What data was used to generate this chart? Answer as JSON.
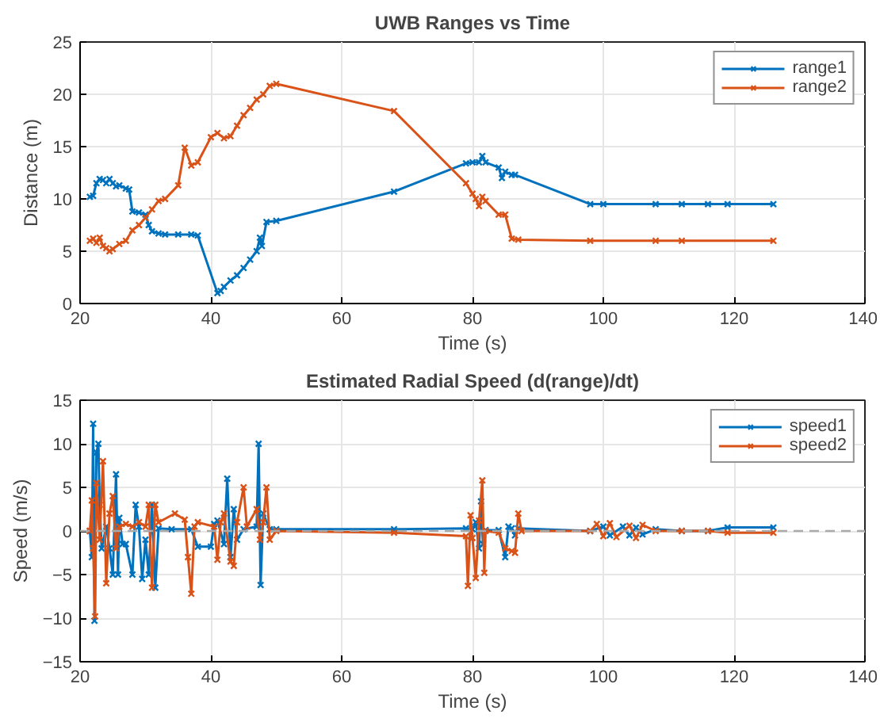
{
  "chart_data": [
    {
      "type": "line",
      "title": "UWB Ranges vs Time",
      "xlabel": "Time (s)",
      "ylabel": "Distance (m)",
      "xlim": [
        20,
        140
      ],
      "ylim": [
        0,
        25
      ],
      "xticks": [
        20,
        40,
        60,
        80,
        100,
        120,
        140
      ],
      "yticks": [
        0,
        5,
        10,
        15,
        20,
        25
      ],
      "grid": true,
      "legend": "top right",
      "marker": "cross",
      "line_style": "solid",
      "series": [
        {
          "name": "range1",
          "color": "#0072bd",
          "x": [
            21.5,
            22,
            22.5,
            23,
            23.5,
            24,
            24.5,
            25,
            25.5,
            26,
            27,
            27.5,
            28,
            29,
            30,
            30.5,
            31,
            32,
            33,
            35,
            37,
            38,
            41,
            41.5,
            42,
            43,
            44,
            45,
            46,
            47,
            47.5,
            47.8,
            48.5,
            50,
            68,
            79,
            80,
            81,
            81.5,
            82,
            84,
            84.5,
            85,
            86,
            86.5,
            98,
            100,
            108,
            112,
            116,
            119,
            126
          ],
          "values": [
            10.2,
            10.3,
            11.5,
            11.9,
            11.8,
            11.5,
            11.9,
            11.5,
            11.2,
            11.3,
            11.0,
            10.9,
            8.8,
            8.7,
            8.5,
            7.5,
            6.9,
            6.7,
            6.6,
            6.6,
            6.6,
            6.5,
            1.0,
            1.2,
            1.6,
            2.2,
            2.7,
            3.4,
            4.2,
            5.0,
            6.3,
            5.5,
            7.8,
            7.9,
            10.7,
            13.4,
            13.5,
            13.5,
            14.1,
            13.5,
            13.0,
            12.0,
            12.6,
            12.3,
            12.3,
            9.5,
            9.5,
            9.5,
            9.5,
            9.5,
            9.5,
            9.5
          ]
        },
        {
          "name": "range2",
          "color": "#d95319",
          "x": [
            21.5,
            22,
            22.5,
            23,
            23.5,
            24,
            24.5,
            25,
            26,
            27,
            28,
            29,
            30,
            31,
            32,
            33,
            35,
            36,
            37,
            38,
            40,
            41,
            42,
            43,
            44,
            45,
            46,
            47,
            48,
            49,
            50,
            68,
            79,
            80,
            80.5,
            81,
            81.5,
            82,
            84,
            85,
            86,
            87,
            98,
            108,
            112,
            126
          ],
          "values": [
            6.0,
            6.2,
            5.8,
            6.3,
            5.5,
            5.3,
            5.0,
            5.2,
            5.7,
            6.0,
            7.0,
            7.5,
            8.2,
            9.0,
            9.8,
            10.0,
            11.3,
            14.9,
            13.2,
            13.5,
            15.9,
            16.3,
            15.8,
            16.0,
            17.0,
            18.0,
            18.7,
            19.5,
            20.0,
            20.8,
            21.0,
            18.4,
            11.5,
            10.5,
            10.0,
            9.3,
            10.2,
            9.8,
            8.5,
            8.5,
            6.2,
            6.1,
            6.0,
            6.0,
            6.0,
            6.0
          ]
        }
      ]
    },
    {
      "type": "line",
      "title": "Estimated Radial Speed (d(range)/dt)",
      "xlabel": "Time (s)",
      "ylabel": "Speed (m/s)",
      "xlim": [
        20,
        140
      ],
      "ylim": [
        -15,
        15
      ],
      "xticks": [
        20,
        40,
        60,
        80,
        100,
        120,
        140
      ],
      "yticks": [
        -15,
        -10,
        -5,
        0,
        5,
        10,
        15
      ],
      "grid": true,
      "legend": "top right",
      "marker": "cross",
      "line_style": "solid",
      "ref_lines": [
        {
          "axis": "y",
          "value": 0,
          "label": null,
          "color": "#aaaaaa",
          "line_style": "dashed"
        }
      ],
      "series": [
        {
          "name": "speed1",
          "color": "#0072bd",
          "x": [
            21.5,
            21.8,
            22,
            22.2,
            22.5,
            22.8,
            23,
            23.3,
            24,
            24.5,
            25,
            25.5,
            25.8,
            26,
            26.5,
            27,
            28,
            28.5,
            29,
            29.5,
            30,
            30.5,
            31,
            31.5,
            32,
            34,
            37,
            38,
            40,
            40.5,
            41,
            42,
            42.5,
            43,
            43.5,
            44,
            45,
            47,
            47.3,
            47.6,
            48,
            49,
            50,
            68,
            79,
            80,
            80.5,
            81,
            81.3,
            81.6,
            82,
            84,
            85,
            85.5,
            86,
            86.5,
            87,
            98,
            100,
            101,
            103,
            104,
            105,
            106,
            108,
            112,
            116,
            119,
            126
          ],
          "values": [
            0,
            -3,
            12.3,
            -10.3,
            9.0,
            10.0,
            3,
            -2,
            0.5,
            -2,
            -5,
            6.5,
            -5,
            1.5,
            -1.5,
            -1.5,
            -5,
            3.0,
            0.5,
            -5.5,
            -1,
            -5,
            3.0,
            -6.5,
            0.3,
            0.2,
            0.2,
            -1.8,
            -1.8,
            0.8,
            1.2,
            -1.5,
            6.0,
            -3,
            2.5,
            -1.0,
            0.2,
            0.5,
            10,
            -6.2,
            2,
            0.2,
            0.2,
            0.2,
            0.3,
            0.2,
            1.0,
            -2.0,
            3.4,
            -1.5,
            0.1,
            0.1,
            -3.0,
            0.5,
            0.3,
            -0.5,
            0.3,
            0,
            0.5,
            -0.5,
            0.5,
            -0.5,
            0.4,
            -0.4,
            0.2,
            0,
            0,
            0.4,
            0.4
          ]
        },
        {
          "name": "speed2",
          "color": "#d95319",
          "x": [
            21.5,
            21.8,
            22,
            22.3,
            22.5,
            23,
            23.5,
            24,
            24.5,
            25,
            25.5,
            26,
            27,
            28,
            29,
            30,
            30.5,
            31,
            31.5,
            32,
            34.5,
            36,
            36.5,
            37,
            37.5,
            38,
            40.5,
            41,
            41.5,
            42,
            43,
            43.5,
            44,
            45,
            45.5,
            47,
            47.5,
            48,
            48.5,
            49,
            50,
            68,
            79,
            79.3,
            79.7,
            80,
            80.5,
            81,
            81.5,
            81.8,
            82,
            84,
            85,
            86,
            86.5,
            87,
            87.5,
            98,
            99,
            100,
            101,
            102,
            104,
            105,
            106,
            108,
            112,
            116,
            119,
            126
          ],
          "values": [
            0,
            3.5,
            -2,
            -9.8,
            5.5,
            -1,
            8.0,
            -6.0,
            2.0,
            4.0,
            -2,
            0.5,
            0.8,
            0.5,
            1.0,
            0.5,
            3.0,
            -6.5,
            3.0,
            1,
            2.0,
            1.3,
            -3,
            -7.2,
            0.5,
            1,
            0.5,
            -3.3,
            1.0,
            2.0,
            -3.5,
            -4.0,
            1.0,
            5.0,
            0.5,
            2.5,
            -1.0,
            1,
            5.0,
            -1,
            0,
            -0.2,
            -0.6,
            -6.3,
            1.8,
            -0.8,
            -5.4,
            1.2,
            5.8,
            -4.8,
            0,
            -0.2,
            -2.0,
            -2.3,
            -2.5,
            2.0,
            0,
            0,
            0.8,
            -0.6,
            0.9,
            -0.7,
            0.6,
            -0.8,
            0.7,
            0,
            0,
            0,
            -0.2,
            -0.2
          ]
        }
      ]
    }
  ]
}
